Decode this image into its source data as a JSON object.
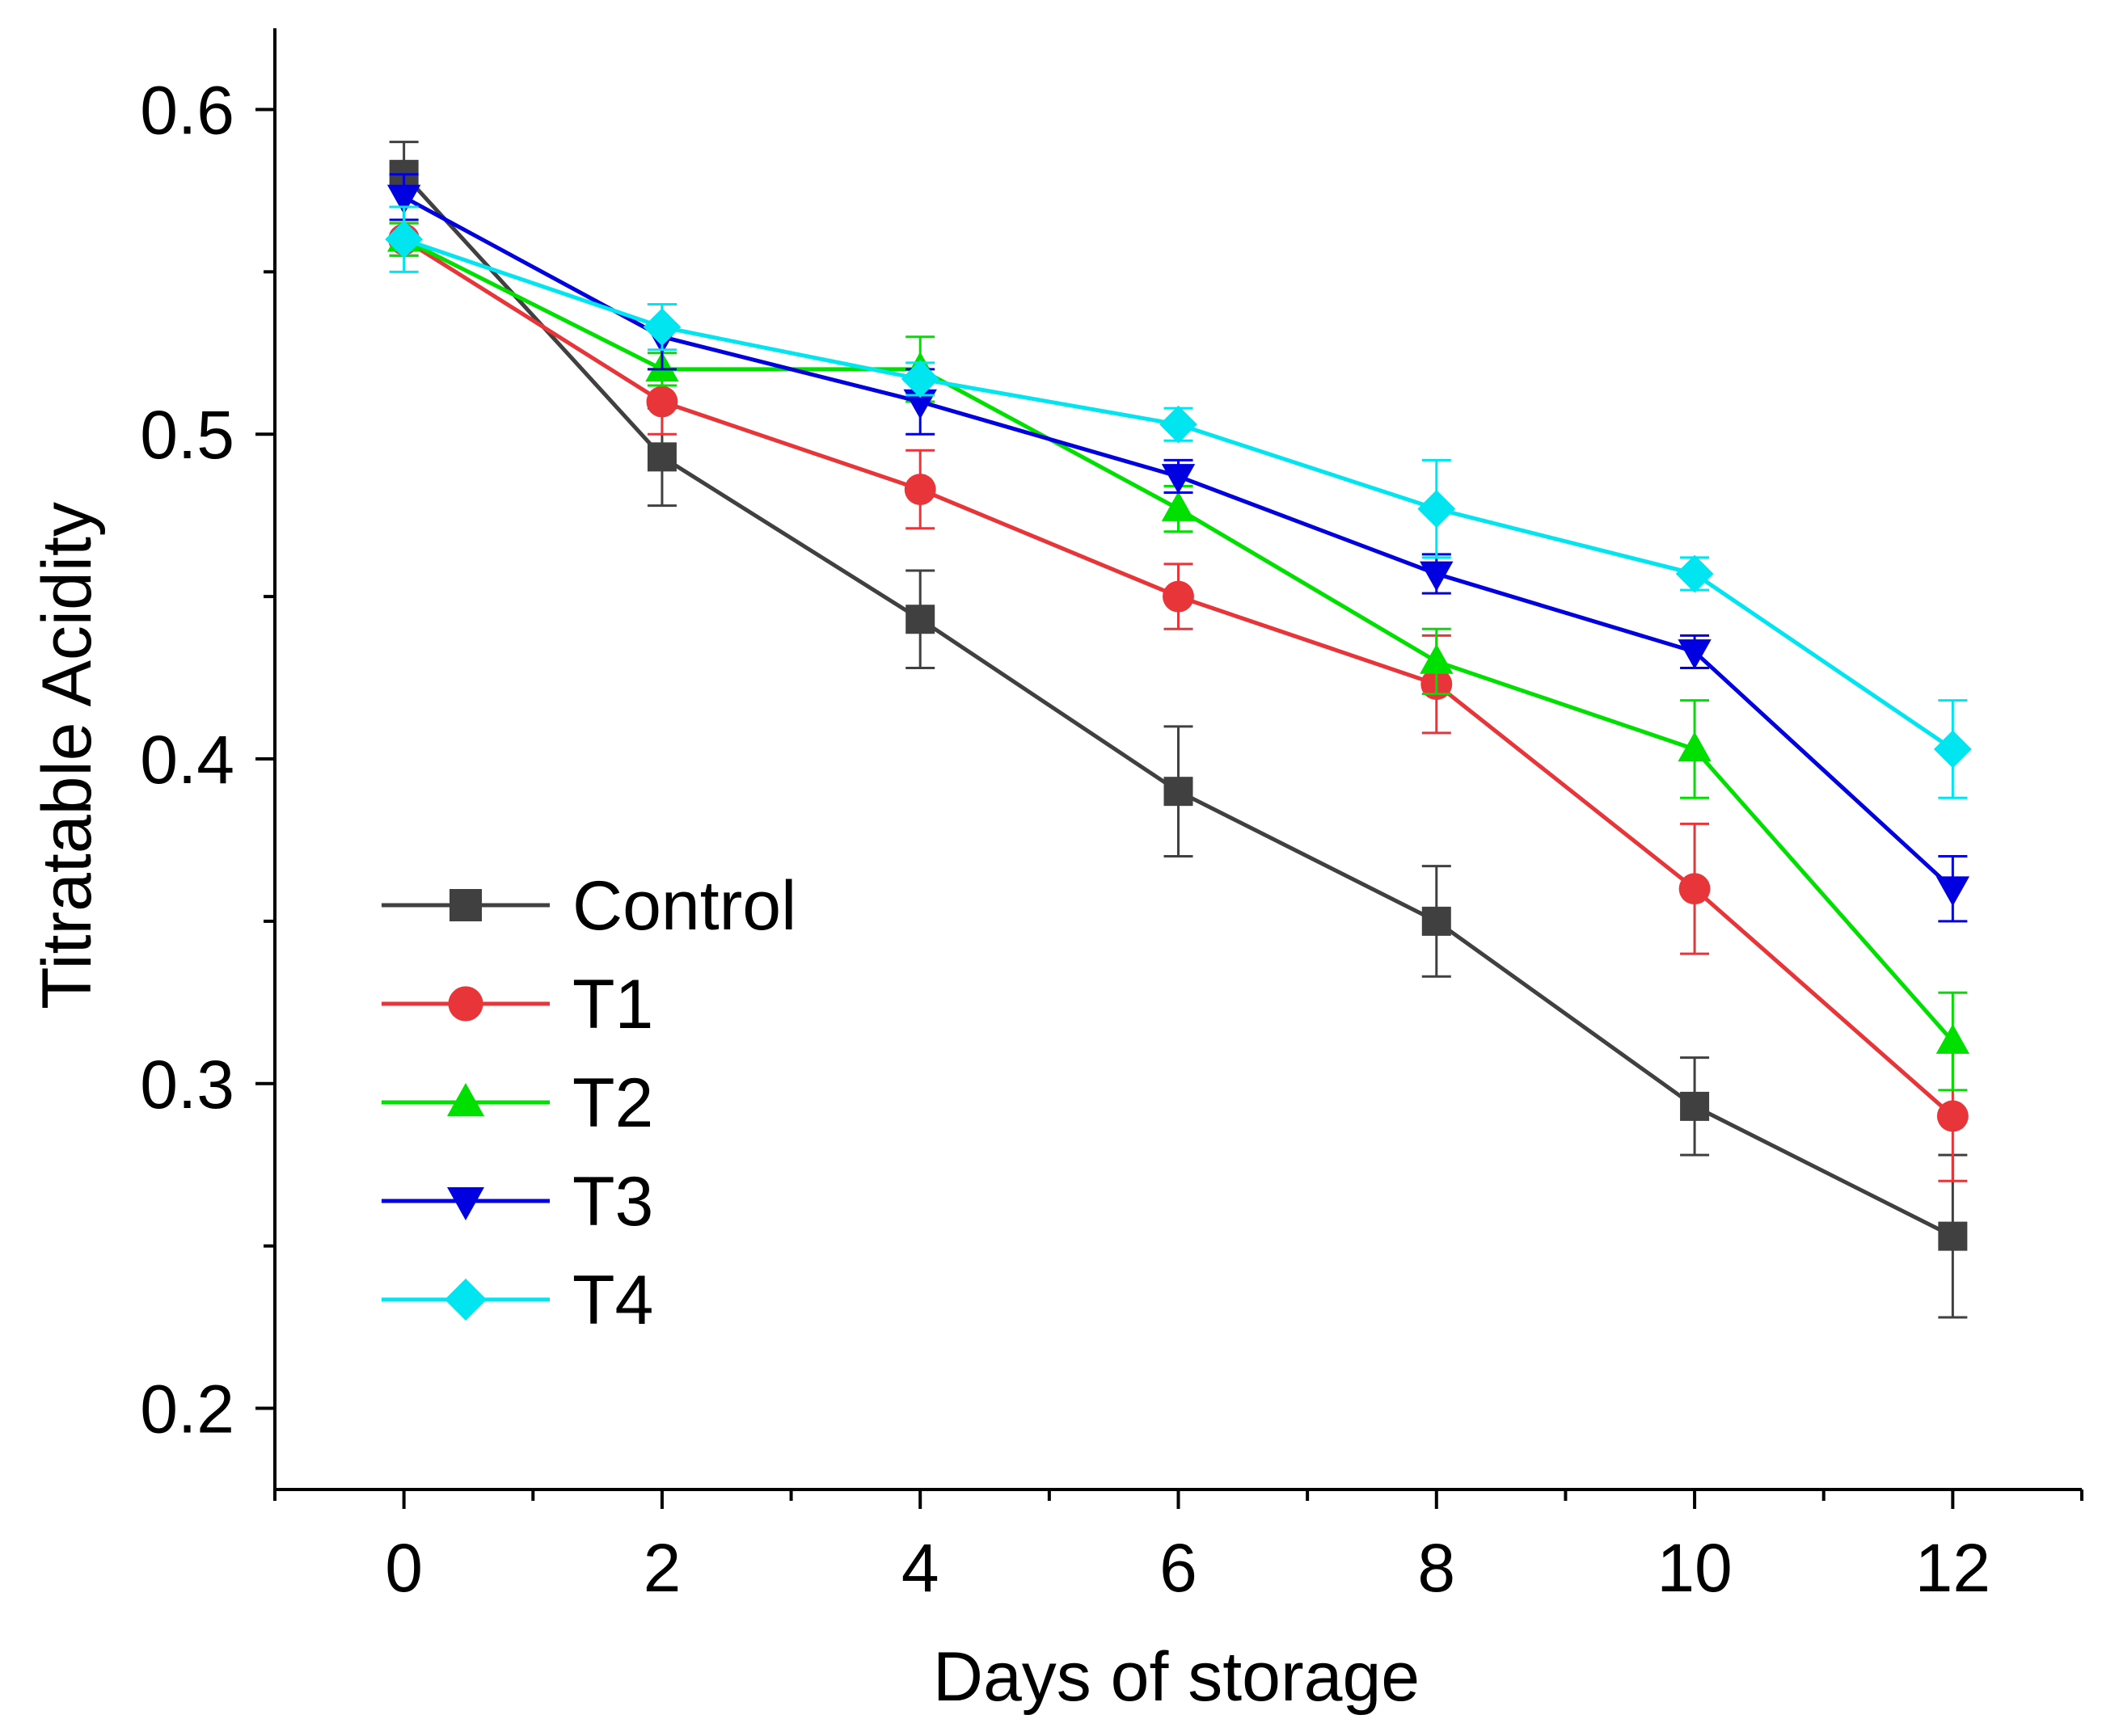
{
  "chart_data": {
    "type": "line",
    "title": "",
    "xlabel": "Days of storage",
    "ylabel": "Titratable Acidity",
    "x": [
      0,
      2,
      4,
      6,
      8,
      10,
      12
    ],
    "x_ticks": [
      "0",
      "2",
      "4",
      "6",
      "8",
      "10",
      "12"
    ],
    "y_ticks": [
      "0.2",
      "0.3",
      "0.4",
      "0.5",
      "0.6"
    ],
    "xlim": [
      -1,
      13
    ],
    "ylim": [
      0.175,
      0.625
    ],
    "grid": false,
    "legend_position": "left-lower",
    "series": [
      {
        "name": "Control",
        "color": "#404040",
        "marker": "square",
        "values": [
          0.58,
          0.493,
          0.443,
          0.39,
          0.35,
          0.293,
          0.253
        ],
        "errors": [
          0.01,
          0.015,
          0.015,
          0.02,
          0.017,
          0.015,
          0.025
        ]
      },
      {
        "name": "T1",
        "color": "#e8353a",
        "marker": "circle",
        "values": [
          0.56,
          0.51,
          0.483,
          0.45,
          0.423,
          0.36,
          0.29
        ],
        "errors": [
          0.005,
          0.01,
          0.012,
          0.01,
          0.015,
          0.02,
          0.02
        ]
      },
      {
        "name": "T2",
        "color": "#00e000",
        "marker": "triangle-up",
        "values": [
          0.56,
          0.52,
          0.52,
          0.477,
          0.43,
          0.403,
          0.313
        ],
        "errors": [
          0.005,
          0.005,
          0.01,
          0.007,
          0.01,
          0.015,
          0.015
        ]
      },
      {
        "name": "T3",
        "color": "#0000e0",
        "marker": "triangle-down",
        "values": [
          0.573,
          0.53,
          0.51,
          0.487,
          0.457,
          0.433,
          0.36
        ],
        "errors": [
          0.007,
          0.01,
          0.01,
          0.005,
          0.006,
          0.005,
          0.01
        ]
      },
      {
        "name": "T4",
        "color": "#00e5f0",
        "marker": "diamond",
        "values": [
          0.56,
          0.533,
          0.517,
          0.503,
          0.477,
          0.457,
          0.403
        ],
        "errors": [
          0.01,
          0.007,
          0.005,
          0.005,
          0.015,
          0.005,
          0.015
        ]
      }
    ]
  }
}
